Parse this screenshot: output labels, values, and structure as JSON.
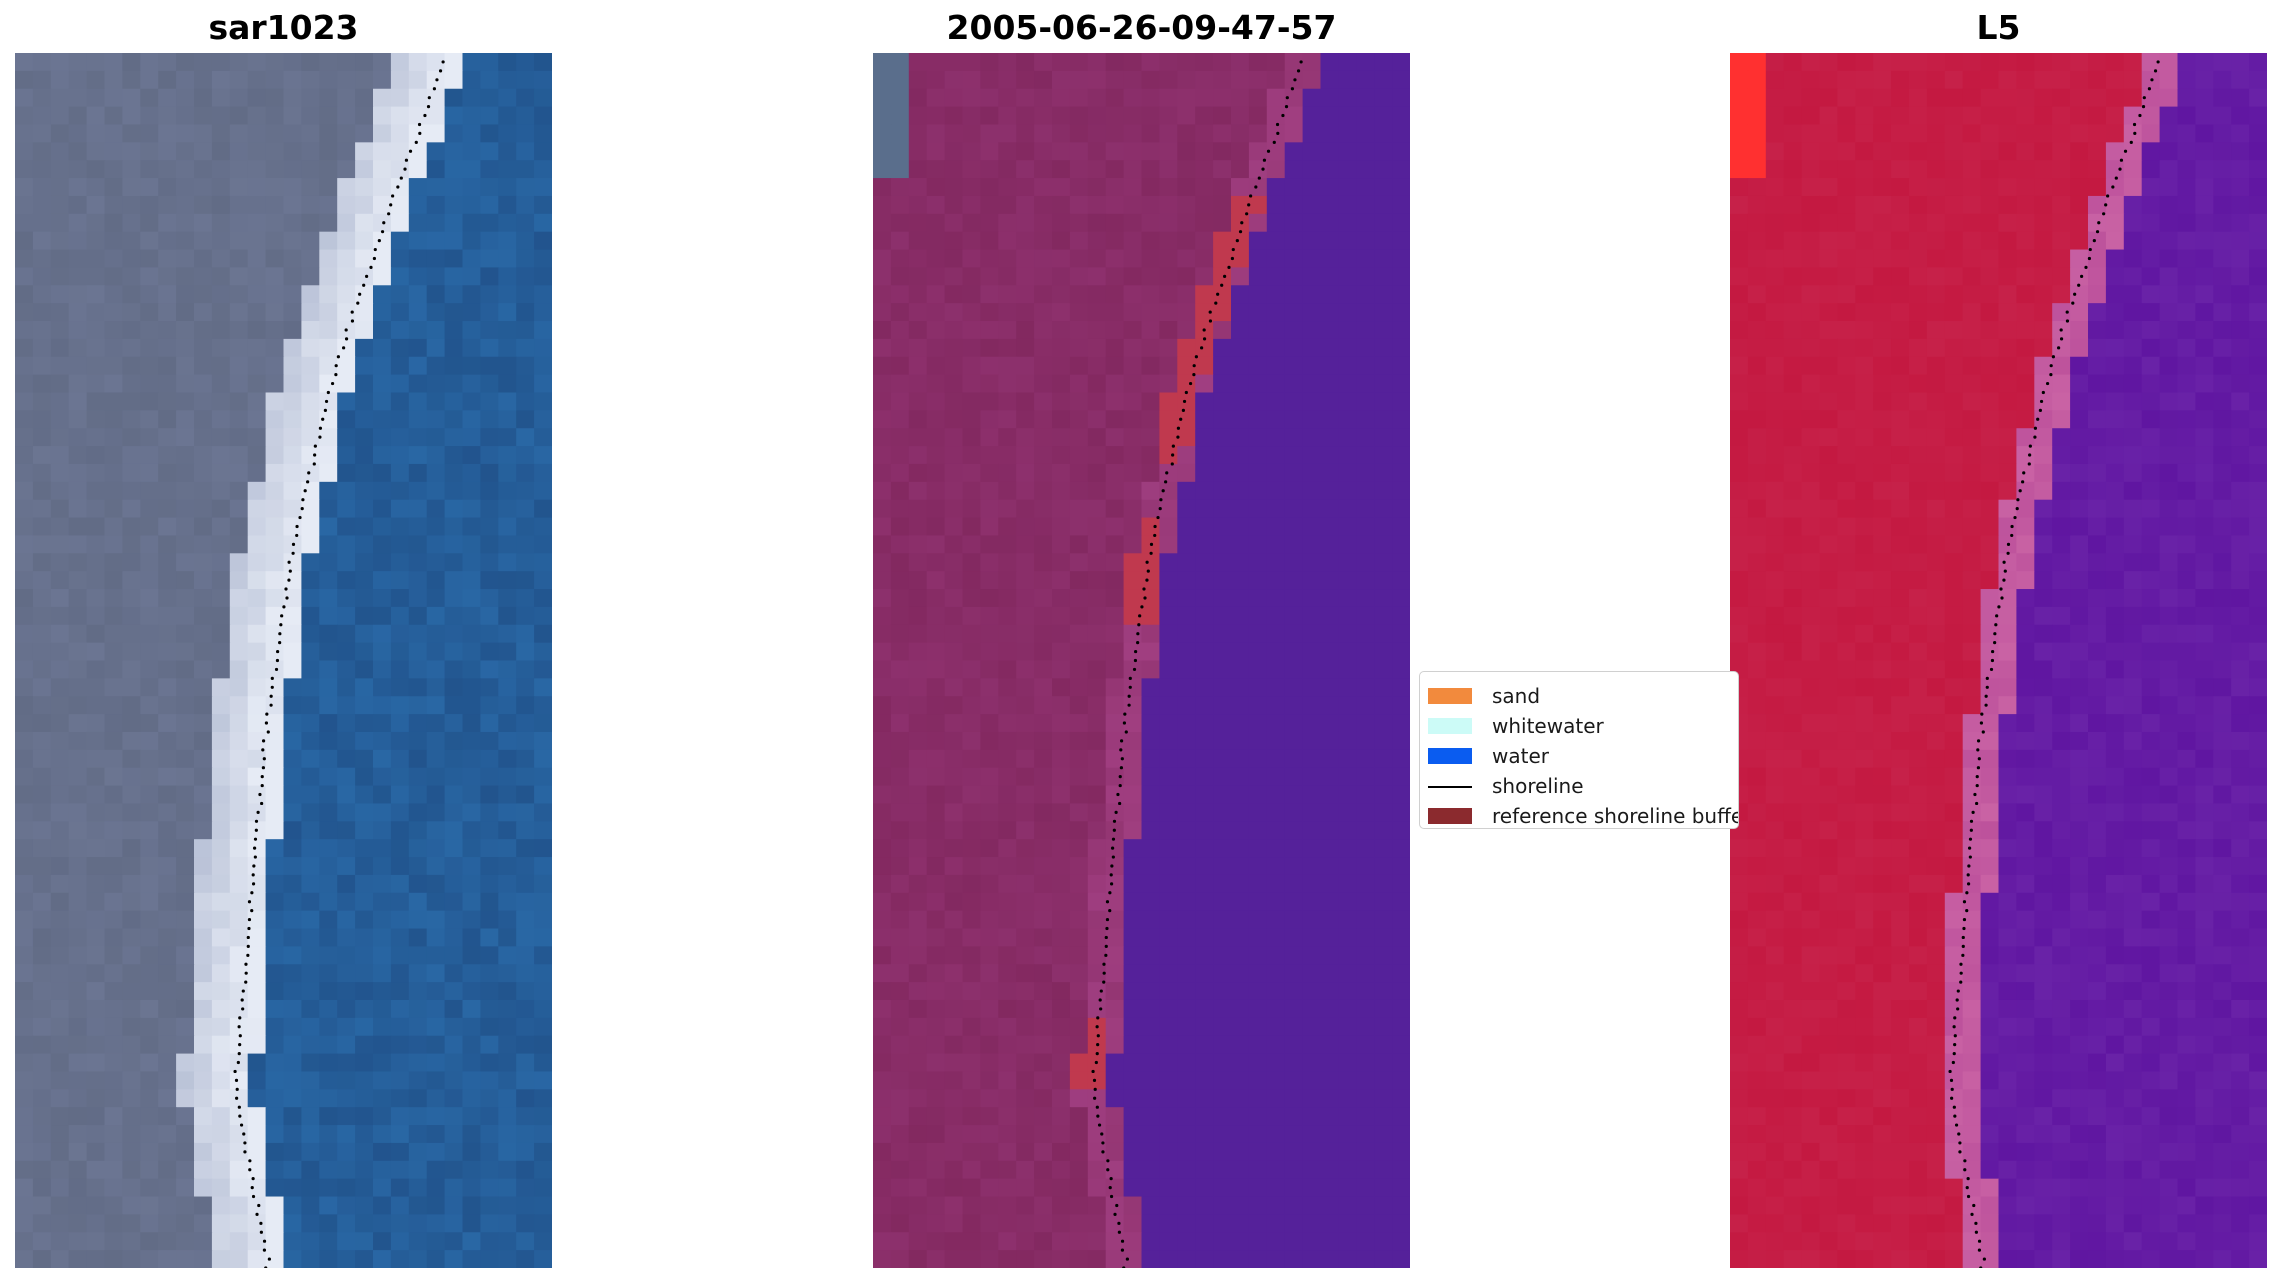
{
  "panels": [
    {
      "title": "sar1023",
      "colormap": "true-color"
    },
    {
      "title": "2005-06-26-09-47-57",
      "colormap": "classified"
    },
    {
      "title": "L5",
      "colormap": "index"
    }
  ],
  "legend": {
    "items": [
      {
        "label": "sand",
        "color": "#f28a3d",
        "kind": "patch"
      },
      {
        "label": "whitewater",
        "color": "#ccfbf7",
        "kind": "patch"
      },
      {
        "label": "water",
        "color": "#0a5cf0",
        "kind": "patch"
      },
      {
        "label": "shoreline",
        "color": "#000000",
        "kind": "line"
      },
      {
        "label": "reference shoreline buffer",
        "color": "#8b2a2e",
        "kind": "patch"
      }
    ]
  },
  "colors": {
    "sand_rgb": "#6e7896",
    "whitewater_rgb": "#e6ebf5",
    "water_rgb": "#2a6aa8",
    "land_class": "#82285f",
    "buffer_class": "#c0394e",
    "water_class": "#55219a",
    "land_index": "#c41840",
    "water_index": "#5e14a0",
    "bright_index": "#ff3030"
  }
}
